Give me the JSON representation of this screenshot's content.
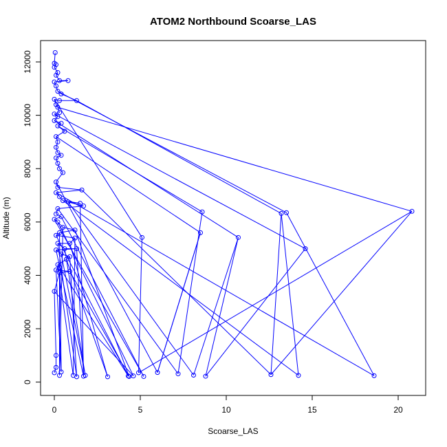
{
  "chart_data": {
    "type": "line",
    "title": "ATOM2 Northbound Scoarse_LAS",
    "xlabel": "Scoarse_LAS",
    "ylabel": "Altitude (m)",
    "xlim": [
      -0.8,
      21.6
    ],
    "ylim": [
      -500,
      12800
    ],
    "x_ticks": [
      0,
      5,
      10,
      15,
      20
    ],
    "y_ticks": [
      0,
      2000,
      4000,
      6000,
      8000,
      10000,
      12000
    ],
    "grid": false,
    "legend": "none",
    "color": "#0000ff",
    "series": [
      {
        "points": [
          [
            0.05,
            12350
          ],
          [
            0.0,
            11950
          ],
          [
            0.1,
            11900
          ],
          [
            0.0,
            11800
          ],
          [
            0.2,
            11600
          ],
          [
            0.1,
            11500
          ],
          [
            0.3,
            11300
          ],
          [
            0.8,
            11300
          ],
          [
            0.0,
            11250
          ],
          [
            0.1,
            11100
          ],
          [
            0.2,
            10900
          ],
          [
            0.4,
            10800
          ],
          [
            1.3,
            10550
          ],
          [
            0.3,
            10550
          ],
          [
            0.0,
            10600
          ],
          [
            0.1,
            10400
          ],
          [
            0.2,
            10300
          ],
          [
            0.3,
            10100
          ],
          [
            0.0,
            10050
          ],
          [
            0.2,
            9950
          ],
          [
            0.0,
            9800
          ],
          [
            0.4,
            9700
          ],
          [
            0.2,
            9600
          ],
          [
            0.6,
            9400
          ],
          [
            0.1,
            9200
          ],
          [
            0.2,
            9000
          ],
          [
            0.1,
            8800
          ],
          [
            0.2,
            8600
          ],
          [
            0.4,
            8500
          ],
          [
            0.1,
            8400
          ],
          [
            0.2,
            8200
          ],
          [
            0.3,
            8000
          ],
          [
            0.5,
            7850
          ],
          [
            0.1,
            7500
          ],
          [
            0.2,
            7300
          ],
          [
            1.6,
            7200
          ],
          [
            0.1,
            7100
          ],
          [
            0.3,
            6950
          ],
          [
            0.5,
            6800
          ],
          [
            1.5,
            6700
          ],
          [
            0.8,
            6750
          ],
          [
            1.7,
            6600
          ],
          [
            0.2,
            6500
          ],
          [
            0.1,
            6300
          ],
          [
            0.4,
            6200
          ],
          [
            0.0,
            6100
          ],
          [
            0.2,
            6000
          ],
          [
            0.5,
            5800
          ],
          [
            1.2,
            5700
          ],
          [
            0.3,
            5600
          ],
          [
            0.1,
            5500
          ],
          [
            1.2,
            5400
          ],
          [
            0.9,
            5200
          ],
          [
            0.2,
            5200
          ],
          [
            0.6,
            5000
          ],
          [
            1.3,
            5000
          ],
          [
            0.1,
            4950
          ],
          [
            0.4,
            4800
          ],
          [
            0.9,
            4700
          ],
          [
            0.7,
            4600
          ],
          [
            0.2,
            4400
          ],
          [
            0.3,
            4300
          ],
          [
            0.1,
            4200
          ],
          [
            0.9,
            4150
          ],
          [
            0.3,
            4100
          ],
          [
            0.0,
            3400
          ],
          [
            0.1,
            1000
          ],
          [
            0.1,
            550
          ],
          [
            0.0,
            350
          ],
          [
            0.3,
            250
          ],
          [
            0.4,
            380
          ],
          [
            1.1,
            250
          ],
          [
            1.3,
            200
          ],
          [
            1.7,
            220
          ],
          [
            1.8,
            250
          ],
          [
            3.1,
            200
          ],
          [
            4.3,
            230
          ],
          [
            4.35,
            210
          ],
          [
            4.6,
            230
          ],
          [
            5.2,
            210
          ],
          [
            6.0,
            360
          ],
          [
            7.2,
            310
          ],
          [
            8.1,
            260
          ],
          [
            8.8,
            220
          ],
          [
            12.6,
            280
          ],
          [
            14.2,
            250
          ],
          [
            18.6,
            240
          ],
          [
            13.5,
            6350
          ],
          [
            13.2,
            6320
          ],
          [
            20.8,
            6400
          ],
          [
            14.6,
            5000
          ],
          [
            10.7,
            5420
          ],
          [
            8.6,
            6380
          ],
          [
            8.5,
            5600
          ],
          [
            5.1,
            5420
          ],
          [
            4.9,
            350
          ]
        ],
        "segments": [
          [
            0,
            1
          ],
          [
            1,
            2
          ],
          [
            2,
            3
          ],
          [
            3,
            4
          ],
          [
            4,
            5
          ],
          [
            5,
            6
          ],
          [
            6,
            7
          ],
          [
            7,
            8
          ],
          [
            8,
            9
          ],
          [
            9,
            10
          ],
          [
            10,
            11
          ],
          [
            11,
            12
          ],
          [
            12,
            13
          ],
          [
            13,
            14
          ],
          [
            14,
            15
          ],
          [
            15,
            16
          ],
          [
            16,
            17
          ],
          [
            17,
            18
          ],
          [
            18,
            19
          ],
          [
            19,
            20
          ],
          [
            20,
            21
          ],
          [
            21,
            22
          ],
          [
            22,
            23
          ],
          [
            23,
            24
          ],
          [
            24,
            25
          ],
          [
            25,
            26
          ],
          [
            26,
            27
          ],
          [
            27,
            28
          ],
          [
            28,
            29
          ],
          [
            29,
            30
          ],
          [
            30,
            31
          ],
          [
            31,
            32
          ],
          [
            32,
            33
          ],
          [
            33,
            34
          ],
          [
            34,
            35
          ],
          [
            35,
            36
          ],
          [
            36,
            37
          ],
          [
            37,
            38
          ],
          [
            38,
            39
          ],
          [
            39,
            40
          ],
          [
            40,
            41
          ],
          [
            41,
            42
          ],
          [
            42,
            43
          ],
          [
            43,
            44
          ],
          [
            44,
            45
          ],
          [
            45,
            46
          ],
          [
            46,
            47
          ],
          [
            47,
            48
          ],
          [
            48,
            49
          ],
          [
            49,
            50
          ],
          [
            50,
            51
          ],
          [
            51,
            52
          ],
          [
            52,
            53
          ],
          [
            53,
            54
          ],
          [
            54,
            55
          ],
          [
            55,
            56
          ],
          [
            56,
            57
          ],
          [
            57,
            58
          ],
          [
            58,
            59
          ],
          [
            59,
            60
          ],
          [
            60,
            61
          ],
          [
            61,
            62
          ],
          [
            62,
            63
          ],
          [
            63,
            64
          ],
          [
            64,
            65
          ],
          [
            65,
            66
          ],
          [
            66,
            67
          ],
          [
            67,
            68
          ],
          [
            10,
            87
          ],
          [
            12,
            88
          ],
          [
            16,
            89
          ],
          [
            18,
            90
          ],
          [
            20,
            91
          ],
          [
            22,
            92
          ],
          [
            24,
            93
          ],
          [
            14,
            94
          ],
          [
            87,
            86
          ],
          [
            88,
            85
          ],
          [
            89,
            84
          ],
          [
            90,
            83
          ],
          [
            91,
            82
          ],
          [
            92,
            81
          ],
          [
            93,
            80
          ],
          [
            94,
            95
          ],
          [
            44,
            79
          ],
          [
            46,
            78
          ],
          [
            48,
            77
          ],
          [
            50,
            76
          ],
          [
            52,
            75
          ],
          [
            54,
            74
          ],
          [
            56,
            73
          ],
          [
            58,
            72
          ],
          [
            60,
            71
          ],
          [
            62,
            70
          ],
          [
            64,
            69
          ],
          [
            95,
            89
          ],
          [
            83,
            91
          ],
          [
            80,
            93
          ],
          [
            84,
            88
          ],
          [
            69,
            47
          ],
          [
            70,
            49
          ],
          [
            71,
            51
          ],
          [
            72,
            53
          ],
          [
            73,
            55
          ],
          [
            74,
            57
          ],
          [
            75,
            59
          ],
          [
            76,
            61
          ],
          [
            77,
            63
          ],
          [
            78,
            65
          ],
          [
            79,
            45
          ],
          [
            81,
            42
          ],
          [
            82,
            40
          ],
          [
            85,
            38
          ],
          [
            86,
            36
          ],
          [
            33,
            80
          ],
          [
            35,
            84
          ],
          [
            39,
            73
          ]
        ]
      }
    ]
  }
}
